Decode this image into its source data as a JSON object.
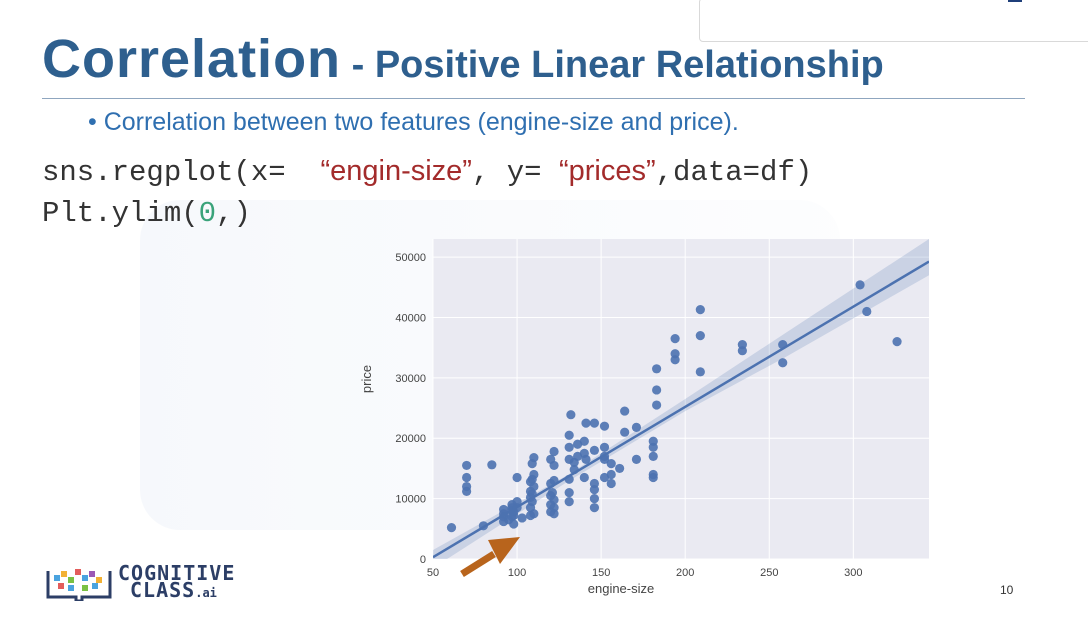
{
  "slide": {
    "title_main": "Correlation",
    "title_sep": " - ",
    "title_sub": "Positive Linear Relationship",
    "bullet": "Correlation between two features (engine-size and price).",
    "code_line1": {
      "p1": "sns.regplot(x= ",
      "s1": "“engin-size”",
      "p2": ", y= ",
      "s2": "“prices”",
      "p3": ",data=df)"
    },
    "code_line2": {
      "p1": "Plt.ylim(",
      "num": "0",
      "p2": ",)"
    },
    "logo_line1": "COGNITIVE",
    "logo_line2": "CLASS",
    "logo_suffix": ".ai",
    "page_number": "10"
  },
  "colors": {
    "title": "#2e5f8e",
    "bullet": "#2f6fb0",
    "string": "#a32b2b",
    "number": "#3aa37a",
    "plot_bg": "#eaeaf2",
    "marker": "#4c72b0",
    "arrow": "#b8641c"
  },
  "chart_data": {
    "type": "scatter",
    "xlabel": "engine-size",
    "ylabel": "price",
    "xlim": [
      50,
      345
    ],
    "ylim": [
      0,
      53000
    ],
    "xticks": [
      50,
      100,
      150,
      200,
      250,
      300
    ],
    "yticks": [
      0,
      10000,
      20000,
      30000,
      40000,
      50000
    ],
    "grid": true,
    "regression": {
      "slope": 166.0,
      "intercept": -8000
    },
    "confidence_band": [
      {
        "x": 50,
        "lo": -1500,
        "hi": 1500
      },
      {
        "x": 130,
        "lo": 12800,
        "hi": 13900
      },
      {
        "x": 200,
        "lo": 24500,
        "hi": 26500
      },
      {
        "x": 260,
        "lo": 33500,
        "hi": 37500
      },
      {
        "x": 345,
        "lo": 47000,
        "hi": 53000
      }
    ],
    "points": [
      [
        61,
        5200
      ],
      [
        70,
        15500
      ],
      [
        70,
        13500
      ],
      [
        70,
        12000
      ],
      [
        70,
        11200
      ],
      [
        80,
        5500
      ],
      [
        85,
        15600
      ],
      [
        92,
        6200
      ],
      [
        92,
        7000
      ],
      [
        92,
        7500
      ],
      [
        92,
        8200
      ],
      [
        95,
        6500
      ],
      [
        97,
        7000
      ],
      [
        97,
        8000
      ],
      [
        97,
        8500
      ],
      [
        97,
        9000
      ],
      [
        98,
        5800
      ],
      [
        98,
        7200
      ],
      [
        98,
        7800
      ],
      [
        100,
        9500
      ],
      [
        100,
        8500
      ],
      [
        100,
        13500
      ],
      [
        103,
        6800
      ],
      [
        108,
        7200
      ],
      [
        108,
        8500
      ],
      [
        108,
        10200
      ],
      [
        108,
        11200
      ],
      [
        108,
        12800
      ],
      [
        109,
        9500
      ],
      [
        109,
        10800
      ],
      [
        109,
        13200
      ],
      [
        109,
        15800
      ],
      [
        110,
        16800
      ],
      [
        110,
        7500
      ],
      [
        110,
        12000
      ],
      [
        110,
        14000
      ],
      [
        120,
        7800
      ],
      [
        120,
        9000
      ],
      [
        120,
        10500
      ],
      [
        120,
        12500
      ],
      [
        120,
        16500
      ],
      [
        121,
        11000
      ],
      [
        122,
        7500
      ],
      [
        122,
        8500
      ],
      [
        122,
        9800
      ],
      [
        122,
        13000
      ],
      [
        122,
        15500
      ],
      [
        122,
        17800
      ],
      [
        131,
        11000
      ],
      [
        131,
        13200
      ],
      [
        131,
        9500
      ],
      [
        131,
        16500
      ],
      [
        131,
        18500
      ],
      [
        131,
        20500
      ],
      [
        132,
        23900
      ],
      [
        134,
        16000
      ],
      [
        134,
        14800
      ],
      [
        136,
        17000
      ],
      [
        136,
        19000
      ],
      [
        140,
        13500
      ],
      [
        140,
        17500
      ],
      [
        140,
        19500
      ],
      [
        141,
        16500
      ],
      [
        141,
        22500
      ],
      [
        146,
        8500
      ],
      [
        146,
        10000
      ],
      [
        146,
        11500
      ],
      [
        146,
        12500
      ],
      [
        146,
        18000
      ],
      [
        146,
        22500
      ],
      [
        152,
        13500
      ],
      [
        152,
        16500
      ],
      [
        152,
        17000
      ],
      [
        152,
        18500
      ],
      [
        152,
        22000
      ],
      [
        156,
        12500
      ],
      [
        156,
        14000
      ],
      [
        156,
        15800
      ],
      [
        161,
        15000
      ],
      [
        164,
        24500
      ],
      [
        164,
        21000
      ],
      [
        171,
        16500
      ],
      [
        171,
        21800
      ],
      [
        181,
        14000
      ],
      [
        181,
        13500
      ],
      [
        181,
        17000
      ],
      [
        181,
        18500
      ],
      [
        181,
        19500
      ],
      [
        183,
        25500
      ],
      [
        183,
        28000
      ],
      [
        183,
        31500
      ],
      [
        194,
        33000
      ],
      [
        194,
        36500
      ],
      [
        194,
        34000
      ],
      [
        209,
        31000
      ],
      [
        209,
        37000
      ],
      [
        209,
        41300
      ],
      [
        234,
        34500
      ],
      [
        234,
        35500
      ],
      [
        258,
        32500
      ],
      [
        258,
        35500
      ],
      [
        304,
        45400
      ],
      [
        308,
        41000
      ],
      [
        326,
        36000
      ]
    ]
  }
}
